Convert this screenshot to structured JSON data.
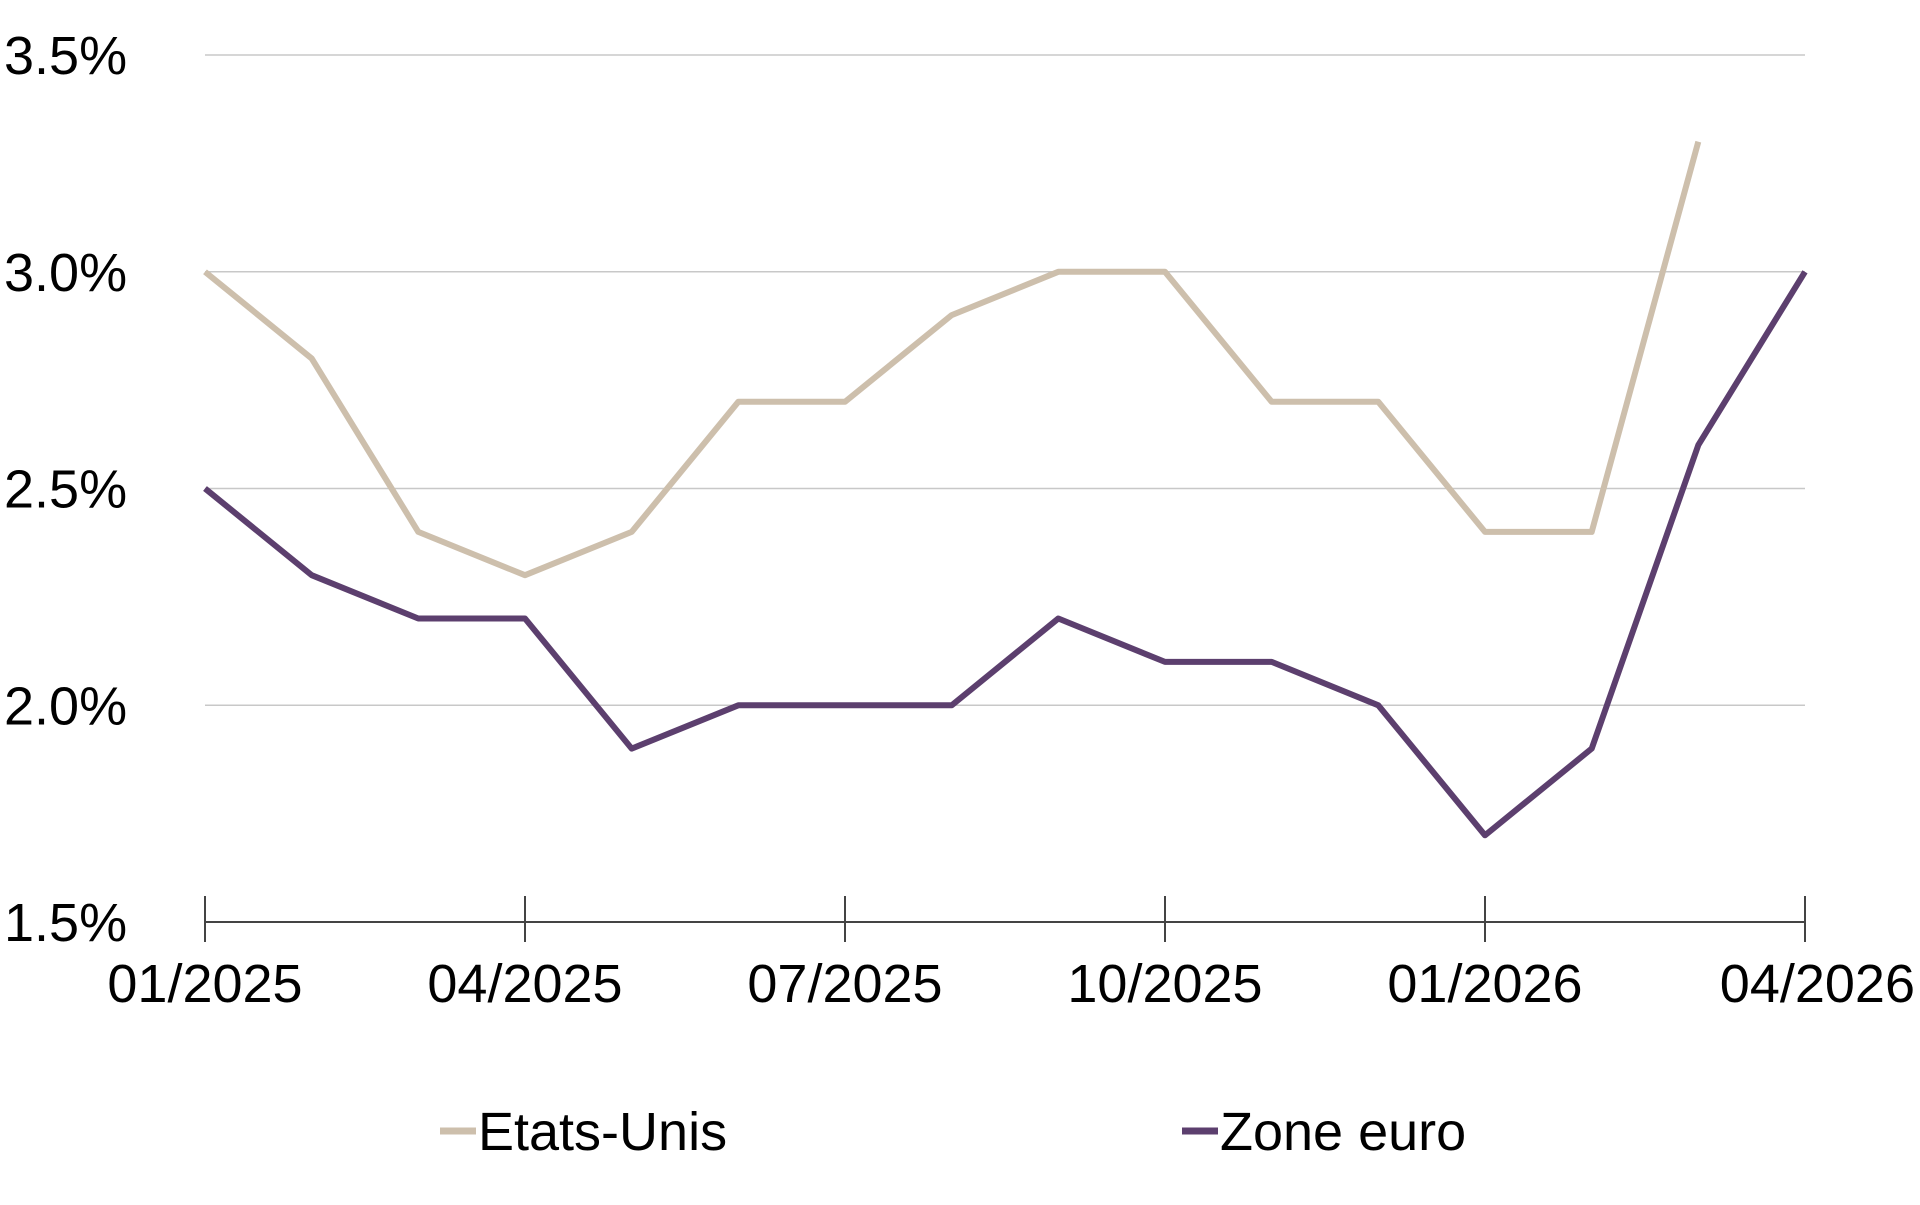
{
  "chart_data": {
    "type": "line",
    "title": "",
    "xlabel": "",
    "ylabel": "",
    "x": [
      "01/2025",
      "02/2025",
      "03/2025",
      "04/2025",
      "05/2025",
      "06/2025",
      "07/2025",
      "08/2025",
      "09/2025",
      "10/2025",
      "11/2025",
      "12/2025",
      "01/2026",
      "02/2026",
      "03/2026",
      "04/2026"
    ],
    "x_ticks": [
      "01/2025",
      "04/2025",
      "07/2025",
      "10/2025",
      "01/2026",
      "04/2026"
    ],
    "y_ticks": [
      "3.5%",
      "3.0%",
      "2.5%",
      "2.0%",
      "1.5%"
    ],
    "ylim": [
      1.5,
      3.5
    ],
    "grid": "horizontal",
    "legend_position": "bottom",
    "series": [
      {
        "name": "Etats-Unis",
        "color": "#cdbfac",
        "values": [
          3.0,
          2.8,
          2.4,
          2.3,
          2.4,
          2.7,
          2.7,
          2.9,
          3.0,
          3.0,
          2.7,
          2.7,
          2.4,
          2.4,
          3.3,
          null
        ]
      },
      {
        "name": "Zone euro",
        "color": "#5c3f6e",
        "values": [
          2.5,
          2.3,
          2.2,
          2.2,
          1.9,
          2.0,
          2.0,
          2.0,
          2.2,
          2.1,
          2.1,
          2.0,
          1.7,
          1.9,
          2.6,
          3.0
        ]
      }
    ]
  }
}
